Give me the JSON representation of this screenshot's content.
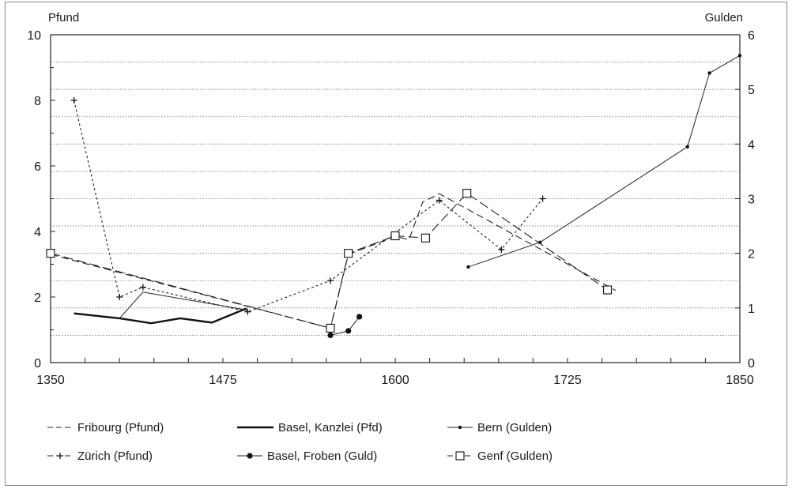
{
  "chart_data": {
    "type": "line",
    "left_axis_label": "Pfund",
    "right_axis_label": "Gulden",
    "xlim": [
      1350,
      1850
    ],
    "ylim_left": [
      0,
      10
    ],
    "ylim_right": [
      0,
      6
    ],
    "x_ticks": [
      "1350",
      "1475",
      "1600",
      "1725",
      "1850"
    ],
    "y_left_ticks": [
      "0",
      "2",
      "4",
      "6",
      "8",
      "10"
    ],
    "y_right_ticks": [
      "0",
      "1",
      "2",
      "3",
      "4",
      "5",
      "6"
    ],
    "grid": "horizontal dotted at right-axis half steps",
    "series": [
      {
        "name": "Fribourg (Pfund)",
        "axis": "left",
        "style": "dashed",
        "marker": "none",
        "color": "#222222",
        "points": [
          [
            1350,
            3.3
          ],
          [
            1553,
            1.05
          ],
          [
            1566,
            3.3
          ],
          [
            1600,
            3.85
          ],
          [
            1610,
            3.75
          ],
          [
            1620,
            4.9
          ],
          [
            1632,
            5.15
          ],
          [
            1760,
            2.2
          ]
        ]
      },
      {
        "name": "Basel, Kanzlei (Pfd)",
        "axis": "left",
        "style": "thick",
        "marker": "none",
        "color": "#111111",
        "points": [
          [
            1367,
            1.5
          ],
          [
            1400,
            1.35
          ],
          [
            1423,
            1.2
          ],
          [
            1444,
            1.35
          ],
          [
            1467,
            1.22
          ],
          [
            1492,
            1.65
          ]
        ]
      },
      {
        "name": "Bern (Gulden)",
        "axis": "right",
        "style": "solid",
        "marker": "dot",
        "color": "#222222",
        "points": [
          [
            1653,
            1.75
          ],
          [
            1705,
            2.2
          ],
          [
            1812,
            3.95
          ],
          [
            1828,
            5.3
          ],
          [
            1850,
            5.62
          ]
        ]
      },
      {
        "name": "Zürich (Pfund)",
        "axis": "left",
        "style": "dotted",
        "marker": "plus",
        "color": "#222222",
        "points": [
          [
            1367,
            8.0
          ],
          [
            1400,
            2.0
          ],
          [
            1417,
            2.3
          ],
          [
            1493,
            1.55
          ],
          [
            1553,
            2.5
          ],
          [
            1632,
            4.95
          ],
          [
            1677,
            3.45
          ],
          [
            1707,
            5.0
          ]
        ]
      },
      {
        "name": "Basel, Froben (Guld)",
        "axis": "right",
        "style": "solid",
        "marker": "disc",
        "color": "#222222",
        "points": [
          [
            1553,
            0.5
          ],
          [
            1566,
            0.58
          ],
          [
            1574,
            0.84
          ]
        ]
      },
      {
        "name": "Genf (Gulden)",
        "axis": "right",
        "style": "longdash",
        "marker": "square",
        "color": "#222222",
        "points": [
          [
            1350,
            2.0
          ],
          [
            1553,
            0.63
          ],
          [
            1566,
            2.0
          ],
          [
            1600,
            2.32
          ],
          [
            1622,
            2.28
          ],
          [
            1652,
            3.1
          ],
          [
            1754,
            1.33
          ]
        ]
      }
    ],
    "connector": {
      "axis": "left",
      "style": "thin",
      "points": [
        [
          1400,
          1.35
        ],
        [
          1417,
          2.15
        ],
        [
          1493,
          1.6
        ]
      ]
    },
    "legend": {
      "placement": "bottom",
      "rows": [
        [
          "Fribourg (Pfund)",
          "Basel, Kanzlei (Pfd)",
          "Bern (Gulden)"
        ],
        [
          "Zürich (Pfund)",
          "Basel, Froben (Guld)",
          "Genf (Gulden)"
        ]
      ]
    }
  }
}
